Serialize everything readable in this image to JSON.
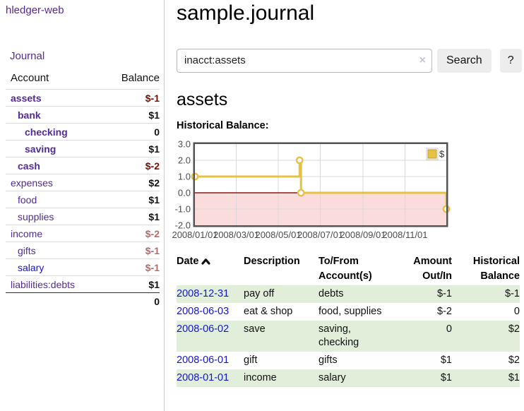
{
  "app": {
    "title": "hledger-web"
  },
  "sidebar": {
    "nav": {
      "journal": "Journal"
    },
    "table": {
      "headers": {
        "account": "Account",
        "balance": "Balance"
      },
      "accounts": [
        {
          "name": "assets",
          "balance": "$-1"
        },
        {
          "name": "bank",
          "balance": "$1"
        },
        {
          "name": "checking",
          "balance": "0"
        },
        {
          "name": "saving",
          "balance": "$1"
        },
        {
          "name": "cash",
          "balance": "$-2"
        },
        {
          "name": "expenses",
          "balance": "$2"
        },
        {
          "name": "food",
          "balance": "$1"
        },
        {
          "name": "supplies",
          "balance": "$1"
        },
        {
          "name": "income",
          "balance": "$-2"
        },
        {
          "name": "gifts",
          "balance": "$-1"
        },
        {
          "name": "salary",
          "balance": "$-1"
        },
        {
          "name": "liabilities:debts",
          "balance": "$1"
        }
      ],
      "total": "0"
    }
  },
  "main": {
    "title": "sample.journal",
    "search": {
      "value": "inacct:assets",
      "clear_icon": "×",
      "button": "Search",
      "help_button": "?"
    },
    "account_heading": "assets",
    "chart_label": "Historical Balance:",
    "register": {
      "headers": {
        "date": "Date",
        "sort_icon": "chevron-up-icon",
        "description": "Description",
        "accounts": "To/From Account(s)",
        "amount": "Amount Out/In",
        "balance": "Historical Balance"
      },
      "rows": [
        {
          "date": "2008-12-31",
          "description": "pay off",
          "accounts": "debts",
          "amount": "$-1",
          "balance": "$-1"
        },
        {
          "date": "2008-06-03",
          "description": "eat & shop",
          "accounts": "food, supplies",
          "amount": "$-2",
          "balance": "0"
        },
        {
          "date": "2008-06-02",
          "description": "save",
          "accounts": "saving, checking",
          "amount": "0",
          "balance": "$2"
        },
        {
          "date": "2008-06-01",
          "description": "gift",
          "accounts": "gifts",
          "amount": "$1",
          "balance": "$2"
        },
        {
          "date": "2008-01-01",
          "description": "income",
          "accounts": "salary",
          "amount": "$1",
          "balance": "$1"
        }
      ]
    }
  },
  "chart_data": {
    "type": "line",
    "step": true,
    "title": "Historical Balance:",
    "series": [
      {
        "name": "$",
        "color": "#E6C243",
        "points": [
          [
            "2008-01-01",
            1
          ],
          [
            "2008-06-01",
            2
          ],
          [
            "2008-06-03",
            0
          ],
          [
            "2008-12-31",
            -1
          ]
        ]
      }
    ],
    "xlim": [
      "2008-01-01",
      "2008-12-31"
    ],
    "ylim": [
      -2,
      3
    ],
    "yticks": [
      "3.0",
      "2.0",
      "1.0",
      "0.0",
      "-1.0",
      "-2.0"
    ],
    "xticks": [
      "2008/01/01",
      "2008/03/01",
      "2008/05/01",
      "2008/07/01",
      "2008/09/01",
      "2008/11/01"
    ],
    "grid": true,
    "legend": {
      "position": "top-right",
      "label": "$"
    },
    "negative_region_fill": "#FBDCDC",
    "zero_line_color": "#8C1717"
  },
  "colors": {
    "link_purple": "#552a9b",
    "link_blue": "#1515d6",
    "negative_strong": "#7e0b00",
    "negative_muted": "#b96a6a",
    "row_green": "#e0eeda",
    "chart_gold": "#E6C243",
    "chart_negative_fill": "#FBDCDC",
    "chart_zero_line": "#8C1717"
  }
}
